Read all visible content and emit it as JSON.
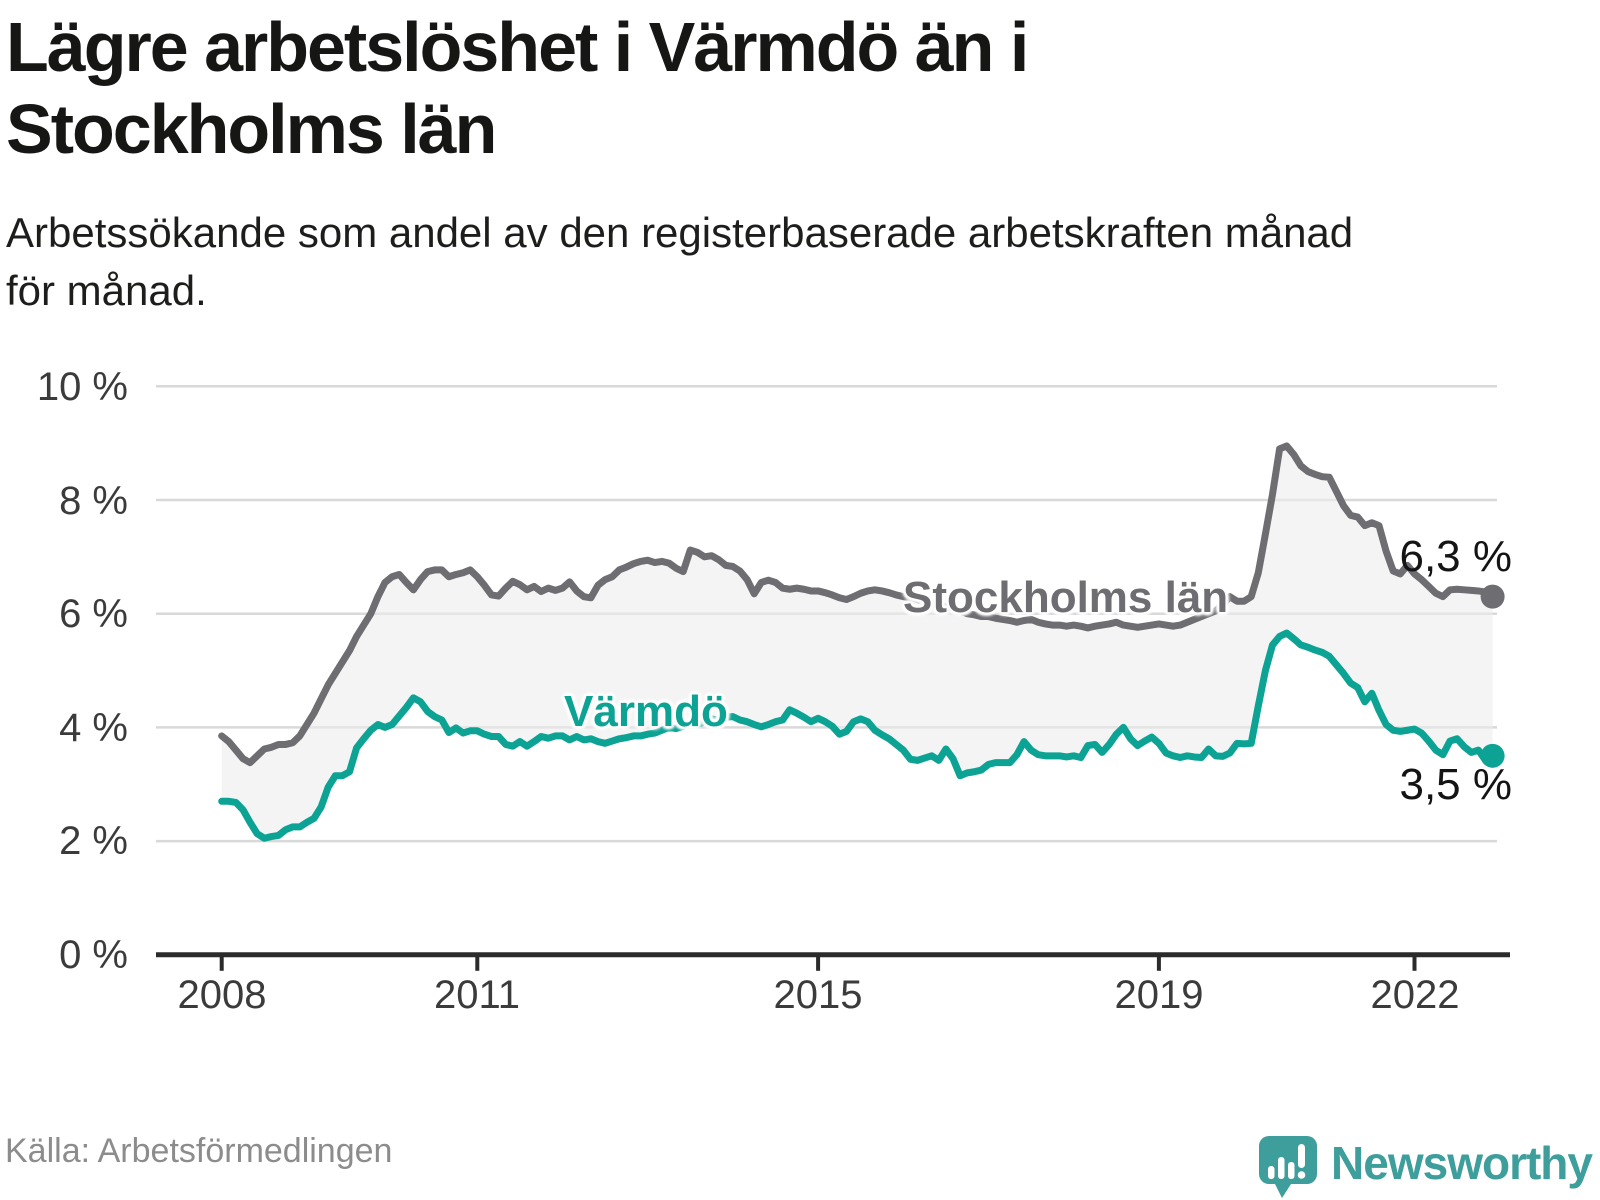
{
  "header": {
    "title_line1": "Lägre arbetslöshet i Värmdö än i",
    "title_line2": "Stockholms län",
    "subtitle_line1": "Arbetssökande som andel av den registerbaserade arbetskraften månad",
    "subtitle_line2": "för månad."
  },
  "footer": {
    "source": "Källa: Arbetsförmedlingen",
    "brand": "Newsworthy"
  },
  "colors": {
    "stockholm_line": "#6d6d72",
    "varmdo_line": "#0ca394",
    "band_fill": "#ededed",
    "gridline": "#d9d9d9",
    "axis": "#2b2b2b",
    "brand_teal": "#3d9e9b"
  },
  "chart_data": {
    "type": "line",
    "unit": "%",
    "frequency": "monthly",
    "x_start": "2008-01",
    "x_end": "2022-12",
    "ylim": [
      0,
      10
    ],
    "grid": true,
    "y_ticks": [
      0,
      2,
      4,
      6,
      8,
      10
    ],
    "y_tick_labels": [
      "0 %",
      "2 %",
      "4 %",
      "6 %",
      "8 %",
      "10 %"
    ],
    "x_tick_years": [
      2008,
      2011,
      2015,
      2019,
      2022
    ],
    "x_tick_labels": [
      "2008",
      "2011",
      "2015",
      "2019",
      "2022"
    ],
    "series": [
      {
        "name": "Stockholms län",
        "end_label": "6,3 %",
        "end_value": 6.3,
        "color": "#6d6d72",
        "values": [
          3.85,
          3.75,
          3.6,
          3.45,
          3.38,
          3.5,
          3.62,
          3.65,
          3.7,
          3.7,
          3.73,
          3.85,
          4.05,
          4.25,
          4.5,
          4.75,
          4.95,
          5.15,
          5.35,
          5.6,
          5.8,
          6.0,
          6.3,
          6.55,
          6.65,
          6.69,
          6.55,
          6.42,
          6.6,
          6.74,
          6.77,
          6.77,
          6.65,
          6.69,
          6.72,
          6.77,
          6.65,
          6.5,
          6.33,
          6.31,
          6.45,
          6.57,
          6.51,
          6.42,
          6.48,
          6.39,
          6.45,
          6.41,
          6.45,
          6.56,
          6.4,
          6.3,
          6.28,
          6.5,
          6.6,
          6.65,
          6.77,
          6.82,
          6.88,
          6.92,
          6.94,
          6.9,
          6.92,
          6.89,
          6.8,
          6.74,
          7.12,
          7.08,
          7.0,
          7.02,
          6.95,
          6.85,
          6.83,
          6.75,
          6.6,
          6.35,
          6.55,
          6.59,
          6.55,
          6.45,
          6.43,
          6.45,
          6.43,
          6.4,
          6.4,
          6.37,
          6.33,
          6.28,
          6.25,
          6.3,
          6.36,
          6.4,
          6.42,
          6.4,
          6.37,
          6.33,
          6.3,
          6.28,
          6.25,
          6.2,
          6.18,
          6.15,
          6.12,
          6.1,
          6.05,
          6.0,
          5.98,
          5.95,
          5.95,
          5.92,
          5.9,
          5.88,
          5.85,
          5.88,
          5.9,
          5.85,
          5.82,
          5.8,
          5.8,
          5.78,
          5.8,
          5.78,
          5.75,
          5.78,
          5.8,
          5.82,
          5.85,
          5.8,
          5.78,
          5.76,
          5.78,
          5.8,
          5.82,
          5.8,
          5.78,
          5.8,
          5.85,
          5.9,
          5.95,
          6.0,
          6.05,
          6.16,
          6.3,
          6.22,
          6.22,
          6.3,
          6.72,
          7.4,
          8.1,
          8.9,
          8.95,
          8.8,
          8.6,
          8.5,
          8.45,
          8.41,
          8.4,
          8.15,
          7.9,
          7.73,
          7.7,
          7.55,
          7.6,
          7.55,
          7.1,
          6.75,
          6.7,
          6.85,
          6.7,
          6.6,
          6.48,
          6.36,
          6.3,
          6.42,
          6.43,
          6.42,
          6.41,
          6.4,
          6.38,
          6.3
        ]
      },
      {
        "name": "Värmdö",
        "end_label": "3,5 %",
        "end_value": 3.5,
        "color": "#0ca394",
        "values": [
          2.7,
          2.7,
          2.68,
          2.55,
          2.33,
          2.13,
          2.05,
          2.08,
          2.1,
          2.2,
          2.25,
          2.25,
          2.33,
          2.4,
          2.6,
          2.95,
          3.15,
          3.15,
          3.22,
          3.64,
          3.8,
          3.95,
          4.05,
          4.0,
          4.05,
          4.2,
          4.35,
          4.52,
          4.45,
          4.28,
          4.19,
          4.13,
          3.91,
          3.99,
          3.9,
          3.94,
          3.94,
          3.88,
          3.84,
          3.84,
          3.7,
          3.67,
          3.75,
          3.67,
          3.75,
          3.84,
          3.81,
          3.85,
          3.85,
          3.78,
          3.84,
          3.78,
          3.8,
          3.75,
          3.72,
          3.76,
          3.8,
          3.82,
          3.85,
          3.85,
          3.88,
          3.9,
          3.95,
          4.0,
          3.98,
          4.02,
          4.08,
          4.05,
          4.1,
          4.15,
          4.12,
          4.18,
          4.19,
          4.13,
          4.1,
          4.05,
          4.01,
          4.05,
          4.1,
          4.13,
          4.31,
          4.25,
          4.18,
          4.1,
          4.16,
          4.1,
          4.02,
          3.88,
          3.93,
          4.1,
          4.15,
          4.1,
          3.95,
          3.87,
          3.8,
          3.7,
          3.6,
          3.44,
          3.42,
          3.46,
          3.5,
          3.42,
          3.62,
          3.45,
          3.15,
          3.2,
          3.22,
          3.25,
          3.35,
          3.38,
          3.38,
          3.38,
          3.52,
          3.75,
          3.6,
          3.52,
          3.5,
          3.5,
          3.5,
          3.48,
          3.5,
          3.47,
          3.68,
          3.7,
          3.56,
          3.7,
          3.88,
          4.0,
          3.8,
          3.68,
          3.76,
          3.83,
          3.72,
          3.55,
          3.5,
          3.47,
          3.5,
          3.48,
          3.47,
          3.62,
          3.5,
          3.49,
          3.55,
          3.72,
          3.71,
          3.72,
          4.38,
          5.0,
          5.45,
          5.6,
          5.66,
          5.56,
          5.45,
          5.41,
          5.36,
          5.32,
          5.25,
          5.1,
          4.95,
          4.78,
          4.7,
          4.45,
          4.6,
          4.3,
          4.05,
          3.95,
          3.93,
          3.95,
          3.97,
          3.9,
          3.76,
          3.6,
          3.52,
          3.76,
          3.8,
          3.66,
          3.56,
          3.6,
          3.42,
          3.5
        ]
      }
    ]
  }
}
